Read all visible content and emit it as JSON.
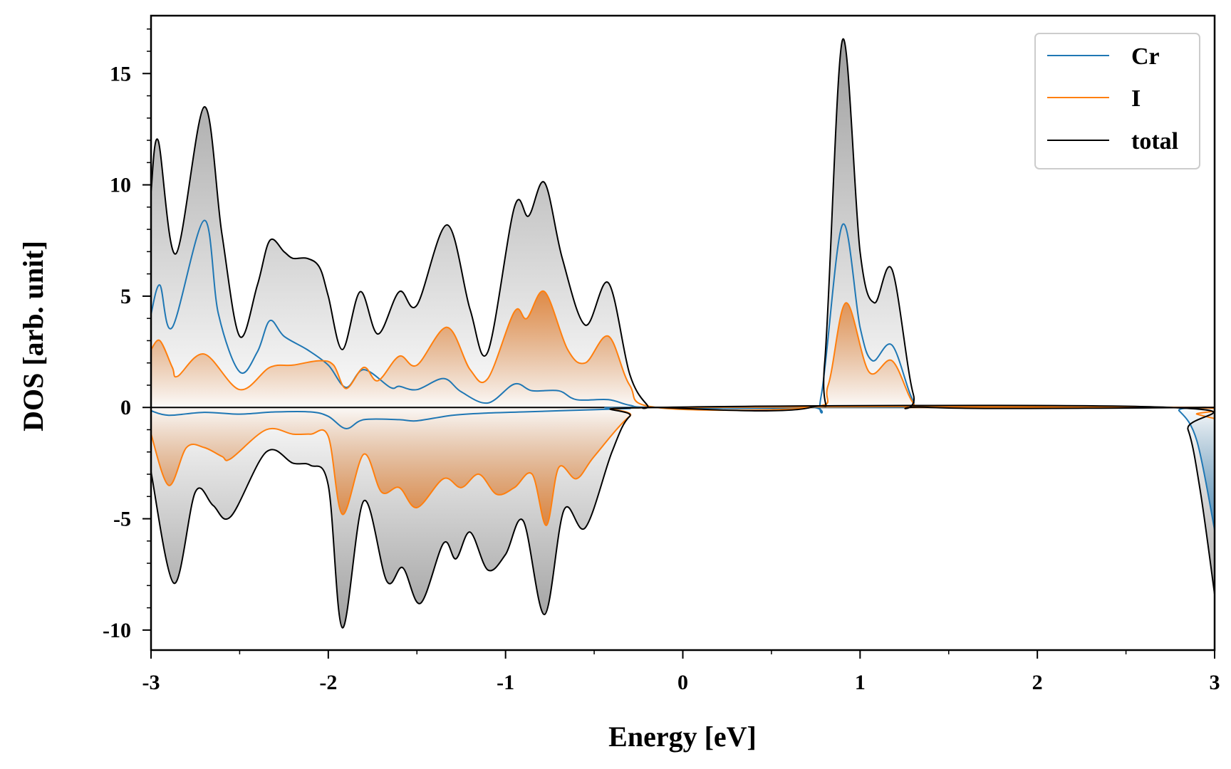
{
  "chart_data": {
    "type": "area",
    "title": "",
    "xlabel": "Energy [eV]",
    "ylabel": "DOS [arb. unit]",
    "xlim": [
      -3,
      3
    ],
    "ylim": [
      -10.9,
      17.6
    ],
    "xticks": [
      -3,
      -2,
      -1,
      0,
      1,
      2,
      3
    ],
    "xtick_labels": [
      "-3",
      "-2",
      "-1",
      "0",
      "1",
      "2",
      "3"
    ],
    "yticks": [
      -10,
      -5,
      0,
      5,
      10,
      15
    ],
    "ytick_labels": [
      "-10",
      "-5",
      "0",
      "5",
      "10",
      "15"
    ],
    "grid": false,
    "legend_position": "top-right",
    "colors": {
      "Cr": "#1f77b4",
      "I": "#ff7f0e",
      "total": "#000000",
      "total_fill": "#a9a9a9",
      "I_fill": "#e07b2a"
    },
    "series": [
      {
        "name": "Cr",
        "color": "#1f77b4",
        "up": [
          [
            -3,
            4.2
          ],
          [
            -2.95,
            5.5
          ],
          [
            -2.88,
            3.6
          ],
          [
            -2.7,
            8.4
          ],
          [
            -2.62,
            4.2
          ],
          [
            -2.5,
            1.6
          ],
          [
            -2.4,
            2.5
          ],
          [
            -2.33,
            3.9
          ],
          [
            -2.25,
            3.2
          ],
          [
            -2.12,
            2.6
          ],
          [
            -2.0,
            1.9
          ],
          [
            -1.9,
            0.9
          ],
          [
            -1.8,
            1.7
          ],
          [
            -1.65,
            0.9
          ],
          [
            -1.6,
            0.95
          ],
          [
            -1.5,
            0.8
          ],
          [
            -1.35,
            1.3
          ],
          [
            -1.25,
            0.7
          ],
          [
            -1.1,
            0.2
          ],
          [
            -0.95,
            1.05
          ],
          [
            -0.85,
            0.75
          ],
          [
            -0.7,
            0.75
          ],
          [
            -0.6,
            0.35
          ],
          [
            -0.42,
            0.35
          ],
          [
            -0.3,
            0.1
          ],
          [
            -0.15,
            0
          ],
          [
            0.7,
            0
          ],
          [
            0.78,
            0.5
          ],
          [
            0.9,
            8.2
          ],
          [
            1.0,
            3.6
          ],
          [
            1.07,
            2.1
          ],
          [
            1.18,
            2.8
          ],
          [
            1.3,
            0.3
          ],
          [
            1.4,
            0
          ],
          [
            3,
            0
          ]
        ],
        "down": [
          [
            -3,
            -0.15
          ],
          [
            -2.9,
            -0.35
          ],
          [
            -2.7,
            -0.22
          ],
          [
            -2.5,
            -0.3
          ],
          [
            -2.3,
            -0.2
          ],
          [
            -2.1,
            -0.2
          ],
          [
            -2.0,
            -0.4
          ],
          [
            -1.9,
            -0.95
          ],
          [
            -1.8,
            -0.55
          ],
          [
            -1.6,
            -0.55
          ],
          [
            -1.5,
            -0.6
          ],
          [
            -1.3,
            -0.35
          ],
          [
            -1.1,
            -0.25
          ],
          [
            -0.9,
            -0.2
          ],
          [
            -0.5,
            -0.1
          ],
          [
            -0.3,
            -0.05
          ],
          [
            -0.2,
            0
          ],
          [
            2.72,
            0
          ],
          [
            2.8,
            -0.15
          ],
          [
            2.9,
            -1.5
          ],
          [
            3.0,
            -5.5
          ]
        ]
      },
      {
        "name": "I",
        "color": "#ff7f0e",
        "up": [
          [
            -3,
            2.6
          ],
          [
            -2.95,
            3.0
          ],
          [
            -2.88,
            1.8
          ],
          [
            -2.85,
            1.4
          ],
          [
            -2.7,
            2.4
          ],
          [
            -2.5,
            0.8
          ],
          [
            -2.33,
            1.8
          ],
          [
            -2.2,
            1.9
          ],
          [
            -2.05,
            2.1
          ],
          [
            -1.97,
            1.9
          ],
          [
            -1.9,
            0.85
          ],
          [
            -1.8,
            1.8
          ],
          [
            -1.72,
            1.2
          ],
          [
            -1.6,
            2.3
          ],
          [
            -1.5,
            1.9
          ],
          [
            -1.33,
            3.6
          ],
          [
            -1.2,
            1.7
          ],
          [
            -1.1,
            1.3
          ],
          [
            -0.95,
            4.3
          ],
          [
            -0.88,
            4.0
          ],
          [
            -0.78,
            5.2
          ],
          [
            -0.65,
            2.6
          ],
          [
            -0.55,
            2.0
          ],
          [
            -0.42,
            3.2
          ],
          [
            -0.3,
            1.0
          ],
          [
            -0.15,
            0
          ],
          [
            0.72,
            0
          ],
          [
            0.82,
            1.0
          ],
          [
            0.92,
            4.7
          ],
          [
            1.05,
            1.6
          ],
          [
            1.18,
            2.1
          ],
          [
            1.3,
            0.2
          ],
          [
            1.4,
            0
          ],
          [
            3,
            0
          ]
        ],
        "down": [
          [
            -3,
            -1.2
          ],
          [
            -2.9,
            -3.5
          ],
          [
            -2.8,
            -1.8
          ],
          [
            -2.7,
            -1.8
          ],
          [
            -2.6,
            -2.2
          ],
          [
            -2.55,
            -2.3
          ],
          [
            -2.35,
            -1.0
          ],
          [
            -2.2,
            -1.2
          ],
          [
            -2.1,
            -1.2
          ],
          [
            -2.0,
            -1.3
          ],
          [
            -1.92,
            -4.8
          ],
          [
            -1.8,
            -2.1
          ],
          [
            -1.7,
            -3.8
          ],
          [
            -1.6,
            -3.6
          ],
          [
            -1.5,
            -4.5
          ],
          [
            -1.35,
            -3.2
          ],
          [
            -1.25,
            -3.6
          ],
          [
            -1.15,
            -3.0
          ],
          [
            -1.05,
            -3.9
          ],
          [
            -0.95,
            -3.6
          ],
          [
            -0.85,
            -3.0
          ],
          [
            -0.77,
            -5.3
          ],
          [
            -0.7,
            -2.7
          ],
          [
            -0.6,
            -3.2
          ],
          [
            -0.5,
            -2.2
          ],
          [
            -0.3,
            -0.4
          ],
          [
            -0.15,
            0
          ],
          [
            2.8,
            0
          ],
          [
            2.9,
            -0.3
          ],
          [
            3.0,
            -0.5
          ]
        ]
      },
      {
        "name": "total",
        "color": "#000000",
        "up": [
          [
            -3,
            9.7
          ],
          [
            -2.96,
            12.0
          ],
          [
            -2.86,
            6.9
          ],
          [
            -2.7,
            13.5
          ],
          [
            -2.6,
            7.8
          ],
          [
            -2.5,
            3.2
          ],
          [
            -2.4,
            5.5
          ],
          [
            -2.33,
            7.5
          ],
          [
            -2.25,
            7.0
          ],
          [
            -2.2,
            6.7
          ],
          [
            -2.12,
            6.7
          ],
          [
            -2.05,
            6.3
          ],
          [
            -2.0,
            5.0
          ],
          [
            -1.92,
            2.6
          ],
          [
            -1.82,
            5.2
          ],
          [
            -1.72,
            3.3
          ],
          [
            -1.6,
            5.2
          ],
          [
            -1.5,
            4.6
          ],
          [
            -1.33,
            8.2
          ],
          [
            -1.2,
            4.4
          ],
          [
            -1.1,
            2.5
          ],
          [
            -0.95,
            9.0
          ],
          [
            -0.87,
            8.6
          ],
          [
            -0.78,
            10.1
          ],
          [
            -0.68,
            6.7
          ],
          [
            -0.55,
            3.7
          ],
          [
            -0.42,
            5.6
          ],
          [
            -0.3,
            1.5
          ],
          [
            -0.2,
            0.1
          ],
          [
            -0.15,
            0
          ],
          [
            0.72,
            0
          ],
          [
            0.8,
            2.0
          ],
          [
            0.9,
            16.5
          ],
          [
            1.0,
            7.0
          ],
          [
            1.08,
            4.7
          ],
          [
            1.18,
            6.2
          ],
          [
            1.3,
            0.6
          ],
          [
            1.4,
            0
          ],
          [
            3,
            0
          ]
        ],
        "down": [
          [
            -3,
            -2.9
          ],
          [
            -2.87,
            -7.9
          ],
          [
            -2.75,
            -3.8
          ],
          [
            -2.65,
            -4.4
          ],
          [
            -2.55,
            -4.9
          ],
          [
            -2.35,
            -2.0
          ],
          [
            -2.2,
            -2.5
          ],
          [
            -2.1,
            -2.6
          ],
          [
            -2.0,
            -3.5
          ],
          [
            -1.92,
            -9.9
          ],
          [
            -1.8,
            -4.2
          ],
          [
            -1.67,
            -7.8
          ],
          [
            -1.58,
            -7.2
          ],
          [
            -1.48,
            -8.8
          ],
          [
            -1.35,
            -6.1
          ],
          [
            -1.28,
            -6.8
          ],
          [
            -1.2,
            -5.6
          ],
          [
            -1.1,
            -7.3
          ],
          [
            -1.0,
            -6.6
          ],
          [
            -0.9,
            -5.1
          ],
          [
            -0.78,
            -9.3
          ],
          [
            -0.67,
            -4.6
          ],
          [
            -0.55,
            -5.4
          ],
          [
            -0.4,
            -2.0
          ],
          [
            -0.3,
            -0.4
          ],
          [
            -0.15,
            0
          ],
          [
            2.75,
            0
          ],
          [
            2.85,
            -1.0
          ],
          [
            2.92,
            -3.8
          ],
          [
            3.0,
            -8.4
          ]
        ]
      }
    ],
    "legend": [
      "Cr",
      "I",
      "total"
    ]
  }
}
